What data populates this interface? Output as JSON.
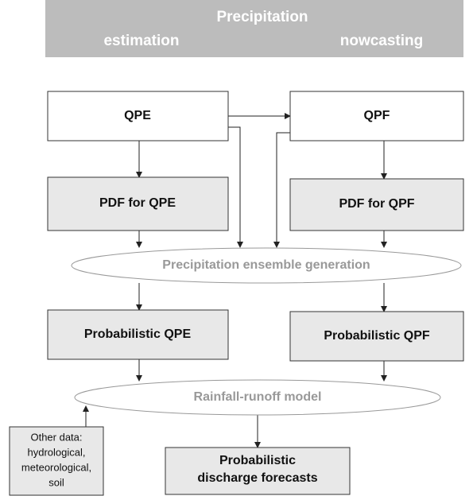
{
  "header": {
    "title": "Precipitation",
    "left": "estimation",
    "right": "nowcasting"
  },
  "nodes": [
    {
      "label": [
        "QPE"
      ]
    },
    {
      "label": [
        "QPF"
      ]
    },
    {
      "label": [
        "PDF for QPE"
      ]
    },
    {
      "label": [
        "PDF for QPF"
      ]
    },
    {
      "label": [
        "Precipitation ensemble generation"
      ]
    },
    {
      "label": [
        "Probabilistic QPE"
      ]
    },
    {
      "label": [
        "Probabilistic QPF"
      ]
    },
    {
      "label": [
        "Rainfall-runoff model"
      ]
    },
    {
      "label": [
        "Other data:",
        "hydrological,",
        "meteorological,",
        "soil"
      ]
    },
    {
      "label": [
        "Probabilistic",
        "discharge forecasts"
      ]
    }
  ]
}
